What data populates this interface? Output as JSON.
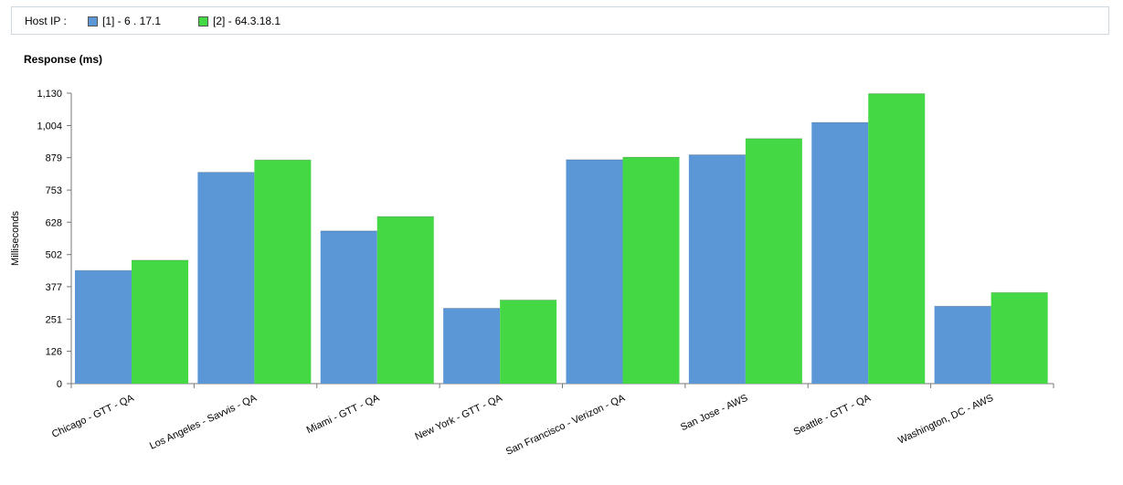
{
  "legend": {
    "label": "Host IP :",
    "items": [
      {
        "label": "[1] - 6 . 17.1",
        "color": "#5b97d6"
      },
      {
        "label": "[2] - 64.3.18.1",
        "color": "#44d844"
      }
    ]
  },
  "chart_data": {
    "type": "bar",
    "title": "Response (ms)",
    "ylabel": "Milliseconds",
    "xlabel": "",
    "ylim": [
      0,
      1130
    ],
    "yticks": [
      "0",
      "126",
      "251",
      "377",
      "502",
      "628",
      "753",
      "879",
      "1,004",
      "1,130"
    ],
    "ytick_values": [
      0,
      126,
      251,
      377,
      502,
      628,
      753,
      879,
      1004,
      1130
    ],
    "categories": [
      "Chicago - GTT - QA",
      "Los Angeles - Savvis - QA",
      "Miami - GTT - QA",
      "New York - GTT - QA",
      "San Francisco - Verizon - QA",
      "San Jose - AWS",
      "Seattle - GTT - QA",
      "Washington, DC - AWS"
    ],
    "series": [
      {
        "name": "[1] - 6 . 17.1",
        "color": "#5b97d6",
        "values": [
          440,
          822,
          594,
          293,
          871,
          890,
          1016,
          301
        ]
      },
      {
        "name": "[2] - 64.3.18.1",
        "color": "#44d844",
        "values": [
          480,
          870,
          650,
          325,
          881,
          953,
          1128,
          354
        ]
      }
    ],
    "grid": false,
    "legend_position": "top"
  }
}
